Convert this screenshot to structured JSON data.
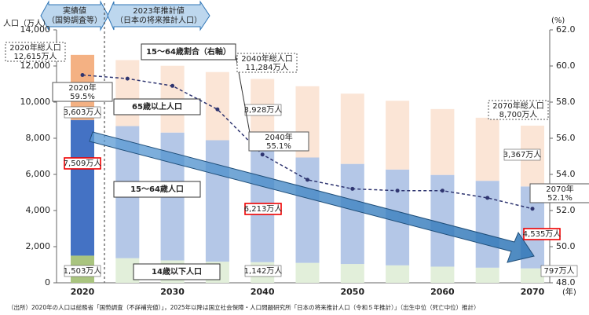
{
  "chart_data": {
    "type": "stacked-bar-line",
    "y_axis_label": "人口（万人）",
    "y2_axis_label": "(%)",
    "x_axis_label": "(年)",
    "header": [
      "実績値",
      "（国勢調査等）",
      "2023年推計値",
      "（日本の将来推計人口）"
    ],
    "categories": [
      "2020",
      null,
      "2030",
      null,
      "2040",
      null,
      "2050",
      null,
      "2060",
      null,
      "2070"
    ],
    "ylim": [
      0,
      14000
    ],
    "yticks": [
      0,
      {
        "value": 2000,
        "label": "2,000"
      },
      {
        "value": 4000,
        "label": "4,000"
      },
      {
        "value": 6000,
        "label": "6,000"
      },
      {
        "value": 8000,
        "label": "8,000"
      },
      {
        "value": 10000,
        "label": "10,000"
      },
      {
        "value": 12000,
        "label": "12,000"
      },
      {
        "value": 14000,
        "label": "14,000"
      }
    ],
    "y2lim": [
      48,
      62
    ],
    "y2ticks": [
      {
        "value": 48,
        "label": "48.0"
      },
      {
        "value": 50,
        "label": "50.0"
      },
      {
        "value": 52,
        "label": "52.0"
      },
      {
        "value": 54,
        "label": "54.0"
      },
      {
        "value": 56,
        "label": "56.0"
      },
      {
        "value": 58,
        "label": "58.0"
      },
      {
        "value": 60,
        "label": "60.0"
      },
      {
        "value": 62,
        "label": "62.0"
      }
    ],
    "series": [
      {
        "name": "14歳以下人口",
        "colors": [
          "#a9c47f",
          "#e2efda",
          "#e2efda",
          "#e2efda",
          "#e2efda",
          "#e2efda",
          "#e2efda",
          "#e2efda",
          "#e2efda",
          "#e2efda",
          "#e2efda"
        ],
        "values": [
          1503,
          1363,
          1240,
          1169,
          1142,
          1103,
          1041,
          966,
          893,
          836,
          797
        ],
        "value_labels": [
          "1,503万人",
          null,
          null,
          null,
          "1,142万人",
          null,
          null,
          null,
          null,
          null,
          "797万人"
        ]
      },
      {
        "name": "15～64歳人口",
        "colors": [
          "#4472c4",
          "#b4c7e7",
          "#b4c7e7",
          "#b4c7e7",
          "#b4c7e7",
          "#b4c7e7",
          "#b4c7e7",
          "#b4c7e7",
          "#b4c7e7",
          "#b4c7e7",
          "#b4c7e7"
        ],
        "values": [
          7509,
          7310,
          7076,
          6722,
          6213,
          5832,
          5540,
          5304,
          5078,
          4809,
          4535
        ],
        "value_labels": [
          "7,509万人",
          null,
          null,
          null,
          "6,213万人",
          null,
          null,
          null,
          null,
          null,
          "4,535万人"
        ]
      },
      {
        "name": "65歳以上人口",
        "colors": [
          "#f4b183",
          "#fbe5d6",
          "#fbe5d6",
          "#fbe5d6",
          "#fbe5d6",
          "#fbe5d6",
          "#fbe5d6",
          "#fbe5d6",
          "#fbe5d6",
          "#fbe5d6",
          "#fbe5d6"
        ],
        "values": [
          3603,
          3653,
          3696,
          3773,
          3928,
          3945,
          3888,
          3804,
          3644,
          3490,
          3367
        ],
        "value_labels": [
          "3,603万人",
          null,
          null,
          null,
          "3,928万人",
          null,
          null,
          null,
          null,
          null,
          "3,367万人"
        ]
      },
      {
        "name": "15～64歳割合（右軸）",
        "axis": "y2",
        "color": "#2f3570",
        "values": [
          59.5,
          59.3,
          58.9,
          57.6,
          55.1,
          53.7,
          53.2,
          53.1,
          53.1,
          52.7,
          52.1
        ]
      }
    ],
    "annotations": [
      [
        "2020年総人口",
        "12,615万人"
      ],
      [
        "2040年総人口",
        "11,284万人"
      ],
      [
        "2070年総人口",
        "8,700万人"
      ],
      [
        "2020年",
        "59.5%"
      ],
      [
        "2040年",
        "55.1%"
      ],
      [
        "2070年",
        "52.1%"
      ]
    ],
    "footnote": "（出所）2020年の人口は総務省「国勢調査（不詳補完値）」，2025年以降は国立社会保障・人口問題研究所「日本の将来推計人口（令和５年推計）」（出生中位（死亡中位）推計）"
  }
}
